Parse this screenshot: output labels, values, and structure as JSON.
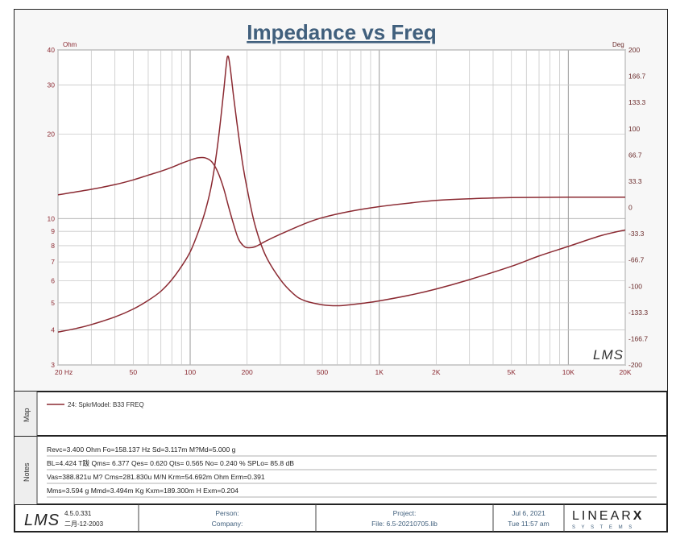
{
  "title": "Impedance vs Freq",
  "left_unit": "Ohm",
  "right_unit": "Deg",
  "watermark": "LMS",
  "chart_data": {
    "type": "line",
    "title": "Impedance vs Freq",
    "x_scale": "log",
    "xlim": [
      20,
      20000
    ],
    "x_ticks": [
      {
        "v": 20,
        "label": "20  Hz"
      },
      {
        "v": 50,
        "label": "50"
      },
      {
        "v": 100,
        "label": "100"
      },
      {
        "v": 200,
        "label": "200"
      },
      {
        "v": 500,
        "label": "500"
      },
      {
        "v": 1000,
        "label": "1K"
      },
      {
        "v": 2000,
        "label": "2K"
      },
      {
        "v": 5000,
        "label": "5K"
      },
      {
        "v": 10000,
        "label": "10K"
      },
      {
        "v": 20000,
        "label": "20K"
      }
    ],
    "y_left": {
      "unit": "Ohm",
      "scale": "log",
      "lim": [
        3,
        40
      ],
      "ticks": [
        {
          "v": 3,
          "label": "3"
        },
        {
          "v": 4,
          "label": "4"
        },
        {
          "v": 5,
          "label": "5"
        },
        {
          "v": 6,
          "label": "6"
        },
        {
          "v": 7,
          "label": "7"
        },
        {
          "v": 8,
          "label": "8"
        },
        {
          "v": 9,
          "label": "9"
        },
        {
          "v": 10,
          "label": "10"
        },
        {
          "v": 20,
          "label": "20"
        },
        {
          "v": 30,
          "label": "30"
        },
        {
          "v": 40,
          "label": "40"
        }
      ]
    },
    "y_right": {
      "unit": "Deg",
      "scale": "linear",
      "lim": [
        -200,
        200
      ],
      "ticks": [
        {
          "v": 200,
          "label": "200"
        },
        {
          "v": 166.7,
          "label": "166.7"
        },
        {
          "v": 133.3,
          "label": "133.3"
        },
        {
          "v": 100,
          "label": "100"
        },
        {
          "v": 66.7,
          "label": "66.7"
        },
        {
          "v": 33.3,
          "label": "33.3"
        },
        {
          "v": 0,
          "label": "0"
        },
        {
          "v": -33.3,
          "label": "-33.3"
        },
        {
          "v": -66.7,
          "label": "-66.7"
        },
        {
          "v": -100,
          "label": "-100"
        },
        {
          "v": -133.3,
          "label": "-133.3"
        },
        {
          "v": -166.7,
          "label": "-166.7"
        },
        {
          "v": -200,
          "label": "-200"
        }
      ]
    },
    "grid": true,
    "series": [
      {
        "axis": "left",
        "color": "#8b2a32",
        "points": [
          [
            20,
            3.93
          ],
          [
            25,
            4.05
          ],
          [
            30,
            4.18
          ],
          [
            40,
            4.45
          ],
          [
            50,
            4.75
          ],
          [
            60,
            5.1
          ],
          [
            70,
            5.5
          ],
          [
            80,
            6.05
          ],
          [
            90,
            6.75
          ],
          [
            100,
            7.6
          ],
          [
            110,
            8.9
          ],
          [
            120,
            10.6
          ],
          [
            130,
            13.3
          ],
          [
            140,
            18.5
          ],
          [
            150,
            28
          ],
          [
            155,
            35
          ],
          [
            158,
            38
          ],
          [
            162,
            35.5
          ],
          [
            170,
            27
          ],
          [
            180,
            20
          ],
          [
            190,
            15.5
          ],
          [
            200,
            12.8
          ],
          [
            220,
            9.5
          ],
          [
            250,
            7.4
          ],
          [
            300,
            6.05
          ],
          [
            350,
            5.4
          ],
          [
            400,
            5.1
          ],
          [
            500,
            4.92
          ],
          [
            600,
            4.88
          ],
          [
            700,
            4.92
          ],
          [
            800,
            4.97
          ],
          [
            1000,
            5.08
          ],
          [
            1500,
            5.35
          ],
          [
            2000,
            5.6
          ],
          [
            3000,
            6.05
          ],
          [
            5000,
            6.75
          ],
          [
            7000,
            7.35
          ],
          [
            10000,
            7.95
          ],
          [
            15000,
            8.7
          ],
          [
            20000,
            9.1
          ]
        ]
      },
      {
        "axis": "right",
        "color": "#8b2a32",
        "points": [
          [
            20,
            16
          ],
          [
            30,
            23
          ],
          [
            40,
            29
          ],
          [
            50,
            35
          ],
          [
            60,
            41
          ],
          [
            70,
            46
          ],
          [
            80,
            51
          ],
          [
            90,
            56
          ],
          [
            100,
            60
          ],
          [
            110,
            63
          ],
          [
            120,
            63
          ],
          [
            130,
            58
          ],
          [
            140,
            45
          ],
          [
            150,
            25
          ],
          [
            160,
            0
          ],
          [
            170,
            -22
          ],
          [
            180,
            -40
          ],
          [
            190,
            -48
          ],
          [
            200,
            -51
          ],
          [
            220,
            -50
          ],
          [
            250,
            -43
          ],
          [
            300,
            -34
          ],
          [
            400,
            -21
          ],
          [
            500,
            -13
          ],
          [
            700,
            -5
          ],
          [
            1000,
            1
          ],
          [
            1500,
            6
          ],
          [
            2000,
            9
          ],
          [
            3000,
            11
          ],
          [
            5000,
            12.5
          ],
          [
            10000,
            13
          ],
          [
            20000,
            13
          ]
        ]
      }
    ]
  },
  "map": {
    "label": "Map",
    "entries": [
      {
        "text": "24: SpkrModel: B33 FREQ",
        "color": "#8b2a32"
      }
    ]
  },
  "notes": {
    "label": "Notes",
    "lines": [
      "Revc=3.400 Ohm  Fo=158.137 Hz  Sd=3.117m M?Md=5.000 g",
      "BL=4.424 T跋  Qms= 6.377  Qes= 0.620  Qts= 0.565  No= 0.240 %  SPLo= 85.8 dB",
      "Vas=388.821u M? Cms=281.830u M/N  Krm=54.692m Ohm  Erm=0.391",
      "Mms=3.594 g  Mmd=3.494m Kg  Kxm=189.300m H  Exm=0.204"
    ]
  },
  "footer": {
    "logo": "LMS",
    "version": "4.5.0.331",
    "build_date": "二月-12-2003",
    "person_label": "Person:",
    "company_label": "Company:",
    "project_label": "Project:",
    "file_label": "File: 6.5-20210705.lib",
    "date": "Jul  6, 2021",
    "time": "Tue 11:57 am",
    "brand": "LINEAR",
    "brand_x": "X",
    "brand_sub": "S Y S T E M S"
  }
}
